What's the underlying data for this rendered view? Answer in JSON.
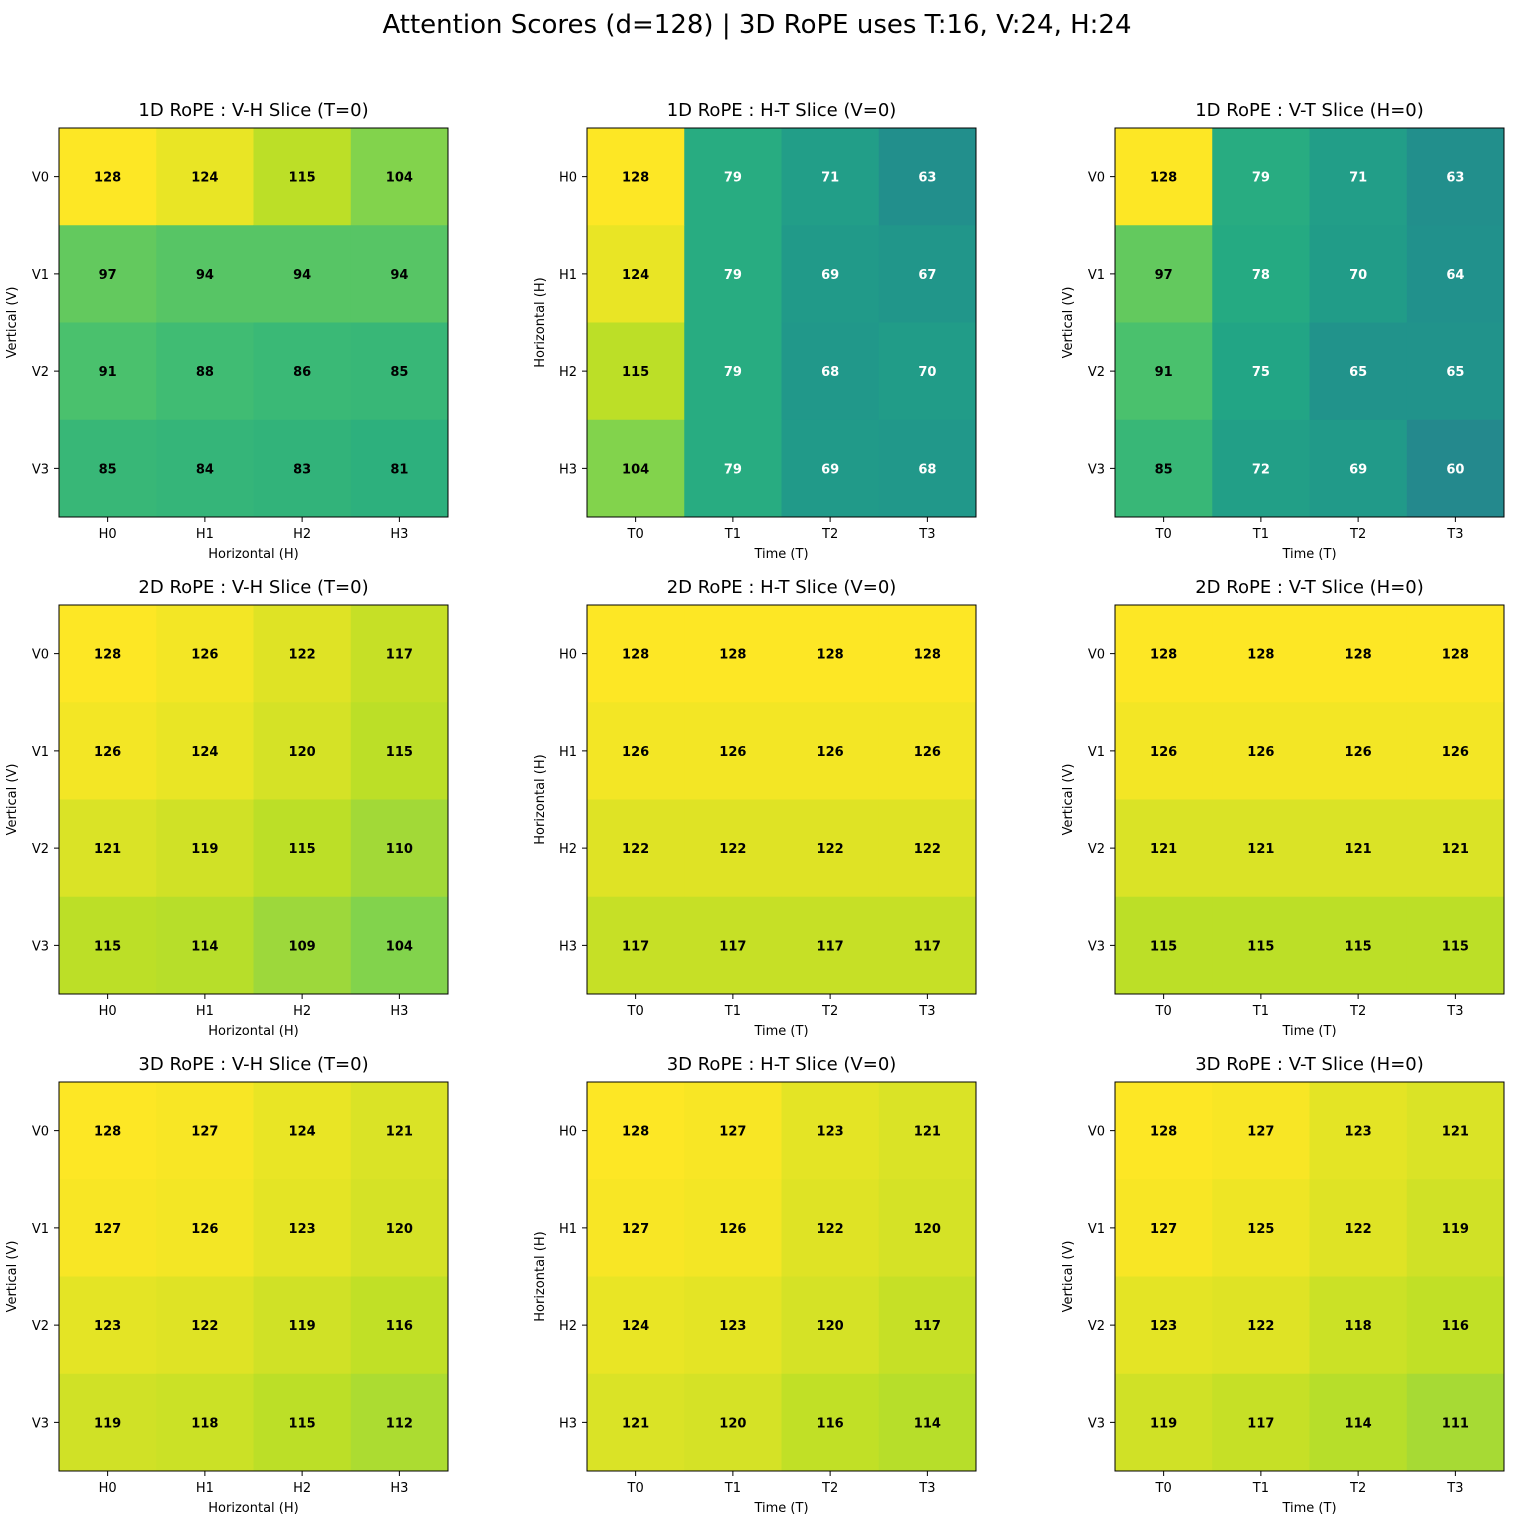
{
  "suptitle": "Attention Scores (d=128) | 3D RoPE uses T:16, V:24, H:24",
  "chart_data": [
    {
      "type": "heatmap",
      "title": "1D RoPE : V-H Slice (T=0)",
      "xlabel": "Horizontal (H)",
      "ylabel": "Vertical (V)",
      "x_ticks": [
        "H0",
        "H1",
        "H2",
        "H3"
      ],
      "y_ticks": [
        "V0",
        "V1",
        "V2",
        "V3"
      ],
      "values": [
        [
          128,
          124,
          115,
          104
        ],
        [
          97,
          94,
          94,
          94
        ],
        [
          91,
          88,
          86,
          85
        ],
        [
          85,
          84,
          83,
          81
        ]
      ]
    },
    {
      "type": "heatmap",
      "title": "1D RoPE : H-T Slice (V=0)",
      "xlabel": "Time (T)",
      "ylabel": "Horizontal (H)",
      "x_ticks": [
        "T0",
        "T1",
        "T2",
        "T3"
      ],
      "y_ticks": [
        "H0",
        "H1",
        "H2",
        "H3"
      ],
      "values": [
        [
          128,
          79,
          71,
          63
        ],
        [
          124,
          79,
          69,
          67
        ],
        [
          115,
          79,
          68,
          70
        ],
        [
          104,
          79,
          69,
          68
        ]
      ]
    },
    {
      "type": "heatmap",
      "title": "1D RoPE : V-T Slice (H=0)",
      "xlabel": "Time (T)",
      "ylabel": "Vertical (V)",
      "x_ticks": [
        "T0",
        "T1",
        "T2",
        "T3"
      ],
      "y_ticks": [
        "V0",
        "V1",
        "V2",
        "V3"
      ],
      "values": [
        [
          128,
          79,
          71,
          63
        ],
        [
          97,
          78,
          70,
          64
        ],
        [
          91,
          75,
          65,
          65
        ],
        [
          85,
          72,
          69,
          60
        ]
      ]
    },
    {
      "type": "heatmap",
      "title": "2D RoPE : V-H Slice (T=0)",
      "xlabel": "Horizontal (H)",
      "ylabel": "Vertical (V)",
      "x_ticks": [
        "H0",
        "H1",
        "H2",
        "H3"
      ],
      "y_ticks": [
        "V0",
        "V1",
        "V2",
        "V3"
      ],
      "values": [
        [
          128,
          126,
          122,
          117
        ],
        [
          126,
          124,
          120,
          115
        ],
        [
          121,
          119,
          115,
          110
        ],
        [
          115,
          114,
          109,
          104
        ]
      ]
    },
    {
      "type": "heatmap",
      "title": "2D RoPE : H-T Slice (V=0)",
      "xlabel": "Time (T)",
      "ylabel": "Horizontal (H)",
      "x_ticks": [
        "T0",
        "T1",
        "T2",
        "T3"
      ],
      "y_ticks": [
        "H0",
        "H1",
        "H2",
        "H3"
      ],
      "values": [
        [
          128,
          128,
          128,
          128
        ],
        [
          126,
          126,
          126,
          126
        ],
        [
          122,
          122,
          122,
          122
        ],
        [
          117,
          117,
          117,
          117
        ]
      ]
    },
    {
      "type": "heatmap",
      "title": "2D RoPE : V-T Slice (H=0)",
      "xlabel": "Time (T)",
      "ylabel": "Vertical (V)",
      "x_ticks": [
        "T0",
        "T1",
        "T2",
        "T3"
      ],
      "y_ticks": [
        "V0",
        "V1",
        "V2",
        "V3"
      ],
      "values": [
        [
          128,
          128,
          128,
          128
        ],
        [
          126,
          126,
          126,
          126
        ],
        [
          121,
          121,
          121,
          121
        ],
        [
          115,
          115,
          115,
          115
        ]
      ]
    },
    {
      "type": "heatmap",
      "title": "3D RoPE : V-H Slice (T=0)",
      "xlabel": "Horizontal (H)",
      "ylabel": "Vertical (V)",
      "x_ticks": [
        "H0",
        "H1",
        "H2",
        "H3"
      ],
      "y_ticks": [
        "V0",
        "V1",
        "V2",
        "V3"
      ],
      "values": [
        [
          128,
          127,
          124,
          121
        ],
        [
          127,
          126,
          123,
          120
        ],
        [
          123,
          122,
          119,
          116
        ],
        [
          119,
          118,
          115,
          112
        ]
      ]
    },
    {
      "type": "heatmap",
      "title": "3D RoPE : H-T Slice (V=0)",
      "xlabel": "Time (T)",
      "ylabel": "Horizontal (H)",
      "x_ticks": [
        "T0",
        "T1",
        "T2",
        "T3"
      ],
      "y_ticks": [
        "H0",
        "H1",
        "H2",
        "H3"
      ],
      "values": [
        [
          128,
          127,
          123,
          121
        ],
        [
          127,
          126,
          122,
          120
        ],
        [
          124,
          123,
          120,
          117
        ],
        [
          121,
          120,
          116,
          114
        ]
      ]
    },
    {
      "type": "heatmap",
      "title": "3D RoPE : V-T Slice (H=0)",
      "xlabel": "Time (T)",
      "ylabel": "Vertical (V)",
      "x_ticks": [
        "T0",
        "T1",
        "T2",
        "T3"
      ],
      "y_ticks": [
        "V0",
        "V1",
        "V2",
        "V3"
      ],
      "values": [
        [
          128,
          127,
          123,
          121
        ],
        [
          127,
          125,
          122,
          119
        ],
        [
          123,
          122,
          118,
          116
        ],
        [
          119,
          117,
          114,
          111
        ]
      ]
    }
  ]
}
